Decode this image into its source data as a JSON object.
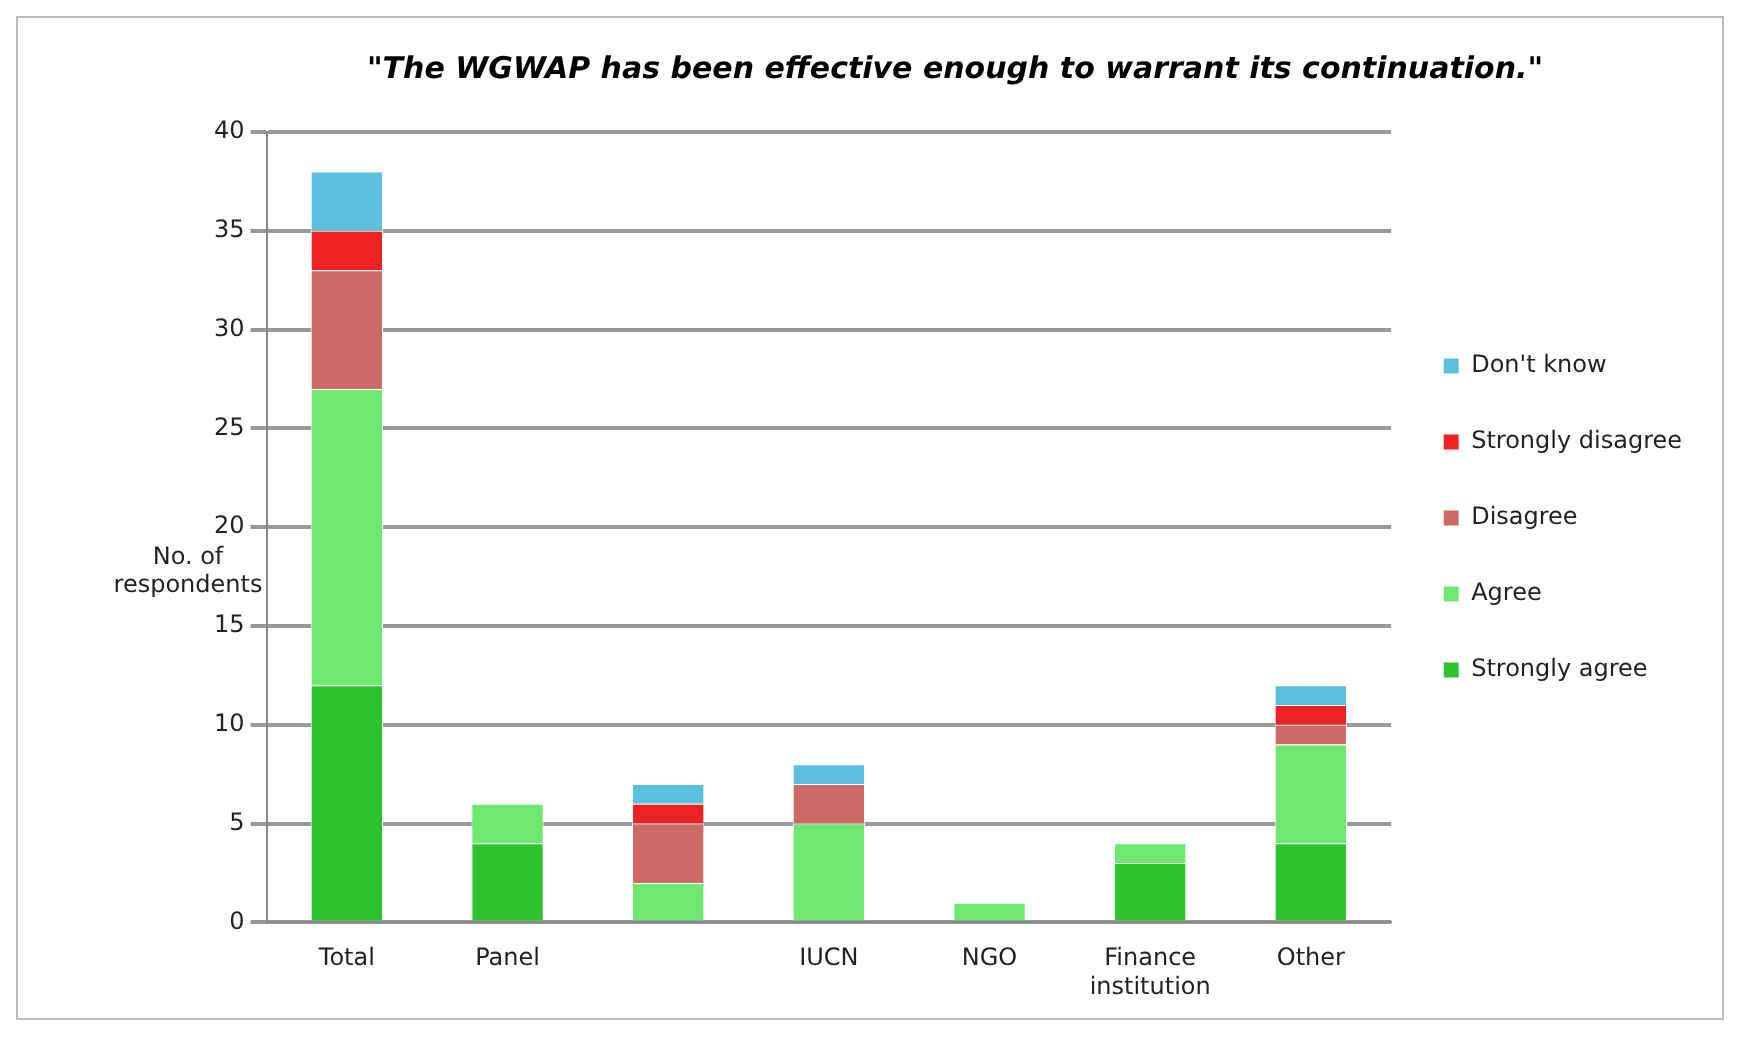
{
  "chart_data": {
    "type": "bar",
    "title": "\"The WGWAP has been effective enough to warrant its continuation.\"",
    "ylabel": "No. of respondents",
    "categories": [
      "Total",
      "Panel",
      null,
      "IUCN",
      "NGO",
      "Finance institution",
      "Other"
    ],
    "stacked": true,
    "series": [
      {
        "name": "Strongly agree",
        "color": "#2ec42e",
        "values": [
          12,
          4,
          0,
          0,
          0,
          3,
          4
        ]
      },
      {
        "name": "Agree",
        "color": "#6ee86e",
        "values": [
          15,
          2,
          2,
          5,
          1,
          1,
          5
        ]
      },
      {
        "name": "Disagree",
        "color": "#cd6a66",
        "values": [
          6,
          0,
          3,
          2,
          0,
          0,
          1
        ]
      },
      {
        "name": "Strongly disagree",
        "color": "#ee2222",
        "values": [
          2,
          0,
          1,
          0,
          0,
          0,
          1
        ]
      },
      {
        "name": "Don't know",
        "color": "#5bc0de",
        "values": [
          3,
          0,
          1,
          1,
          0,
          0,
          1
        ]
      }
    ],
    "ylim": [
      0,
      40
    ],
    "yticks": [
      0,
      5,
      10,
      15,
      20,
      25,
      30,
      35,
      40
    ],
    "grid": "y",
    "legend": "right"
  }
}
